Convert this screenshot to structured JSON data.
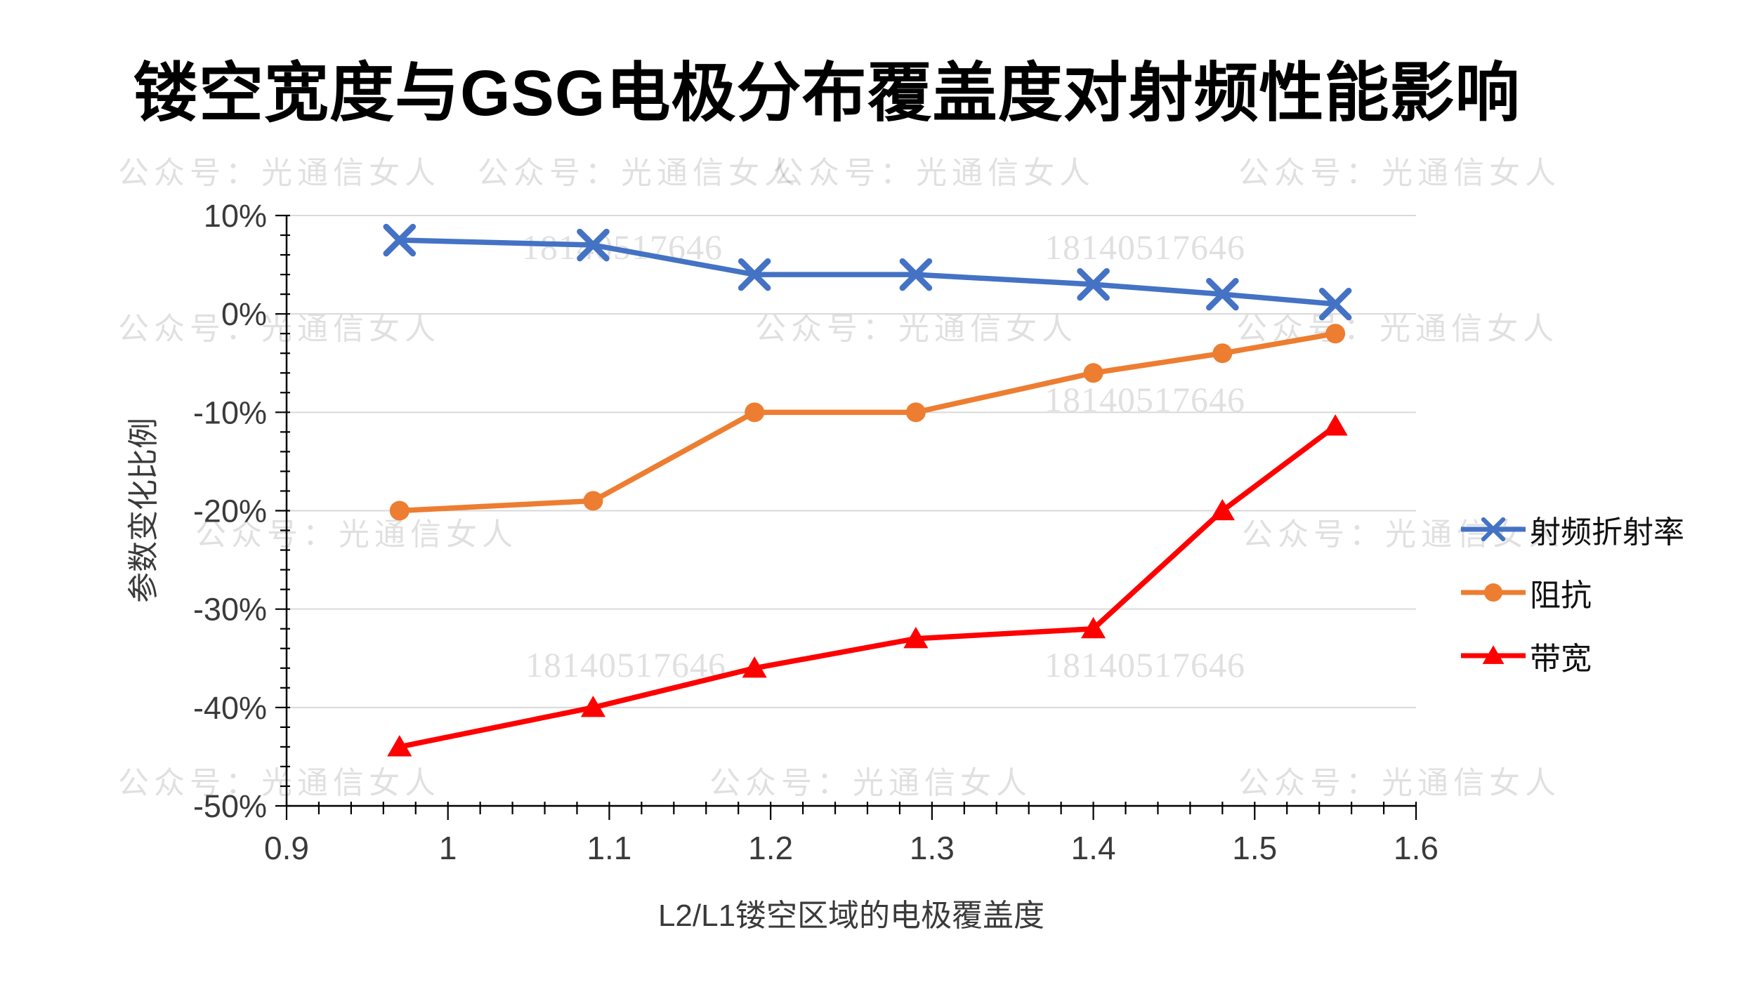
{
  "title": "镂空宽度与GSG电极分布覆盖度对射频性能影响",
  "watermarks": {
    "label": "公众号：光通信女人",
    "number": "18140517646"
  },
  "chart_data": {
    "type": "line",
    "x": [
      0.97,
      1.09,
      1.19,
      1.29,
      1.4,
      1.48,
      1.55
    ],
    "series": [
      {
        "name": "射频折射率",
        "color": "#4472C4",
        "marker": "x",
        "values": [
          7.5,
          7,
          4,
          4,
          3,
          2,
          1
        ]
      },
      {
        "name": "阻抗",
        "color": "#ED7D31",
        "marker": "circle",
        "values": [
          -20,
          -19,
          -10,
          -10,
          -6,
          -4,
          -2
        ]
      },
      {
        "name": "带宽",
        "color": "#FF0000",
        "marker": "triangle",
        "values": [
          -44,
          -40,
          -36,
          -33,
          -32,
          -20,
          -11.4
        ]
      }
    ],
    "title": "镂空宽度与GSG电极分布覆盖度对射频性能影响",
    "xlabel": "L2/L1镂空区域的电极覆盖度",
    "ylabel": "参数变化比例",
    "xlim": [
      0.9,
      1.6
    ],
    "ylim": [
      -50,
      10
    ],
    "x_ticks": [
      "0.9",
      "1",
      "1.1",
      "1.2",
      "1.3",
      "1.4",
      "1.5",
      "1.6"
    ],
    "y_ticks": [
      "10%",
      "0%",
      "-10%",
      "-20%",
      "-30%",
      "-40%",
      "-50%"
    ],
    "grid": true,
    "legend_position": "right",
    "gridline_color": "#D9D9D9",
    "axis_color": "#000000"
  }
}
